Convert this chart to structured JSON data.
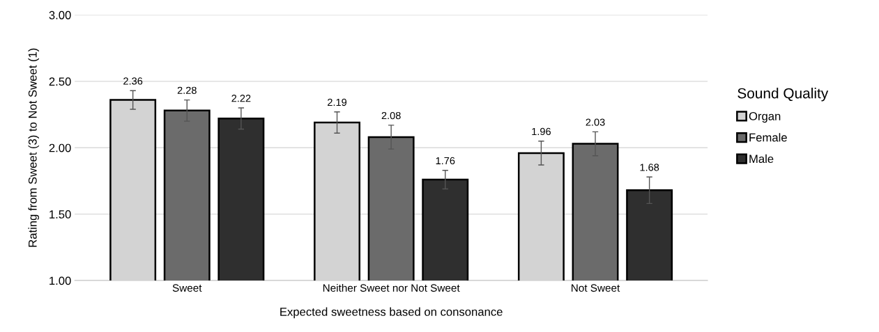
{
  "chart_data": {
    "type": "bar",
    "xlabel": "Expected sweetness based on consonance",
    "ylabel": "Rating from Sweet (3) to Not Sweet (1)",
    "legend_title": "Sound Quality",
    "legend": "right",
    "grid": "y",
    "data_labels": true,
    "categories": [
      "Sweet",
      "Neither Sweet nor Not Sweet",
      "Not Sweet"
    ],
    "ylim": [
      1,
      3
    ],
    "yticks": [
      {
        "value": 1,
        "label": "1.00"
      },
      {
        "value": 1.5,
        "label": "1.50"
      },
      {
        "value": 2,
        "label": "2.00"
      },
      {
        "value": 2.5,
        "label": "2.50"
      },
      {
        "value": 3,
        "label": "3.00"
      }
    ],
    "series": [
      {
        "name": "Organ",
        "color": "#d3d3d3",
        "values": [
          2.36,
          2.19,
          1.96
        ],
        "errors": [
          0.07,
          0.08,
          0.09
        ]
      },
      {
        "name": "Female",
        "color": "#6b6b6b",
        "values": [
          2.28,
          2.08,
          2.03
        ],
        "errors": [
          0.08,
          0.09,
          0.09
        ]
      },
      {
        "name": "Male",
        "color": "#2f2f2f",
        "values": [
          2.22,
          1.76,
          1.68
        ],
        "errors": [
          0.08,
          0.07,
          0.1
        ]
      }
    ]
  }
}
